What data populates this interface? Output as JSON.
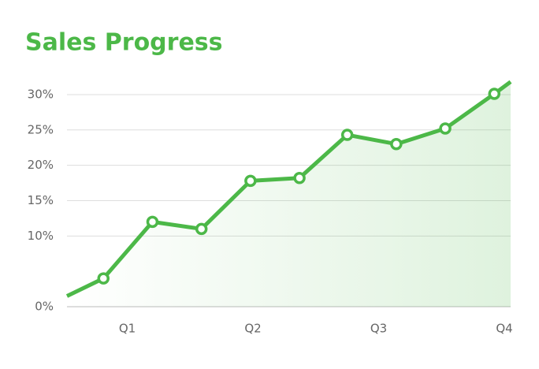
{
  "chart_data": {
    "type": "line",
    "title": "Sales Progress",
    "x": [
      0.52,
      0.81,
      1.2,
      1.59,
      1.98,
      2.37,
      2.75,
      3.14,
      3.53,
      3.92,
      4.05
    ],
    "values": [
      1.5,
      4,
      12,
      11,
      17.8,
      18.2,
      24.3,
      23,
      25.2,
      30.1,
      31.8
    ],
    "color": "#4cb848",
    "xlim": [
      0.52,
      4.05
    ],
    "xticks": [
      {
        "value": 1,
        "label": "Q1"
      },
      {
        "value": 2,
        "label": "Q2"
      },
      {
        "value": 3,
        "label": "Q3"
      },
      {
        "value": 4,
        "label": "Q4"
      }
    ],
    "ylim": [
      0,
      32
    ],
    "yticks": [
      {
        "value": 0,
        "label": "0%"
      },
      {
        "value": 10,
        "label": "10%"
      },
      {
        "value": 15,
        "label": "15%"
      },
      {
        "value": 20,
        "label": "20%"
      },
      {
        "value": 25,
        "label": "25%"
      },
      {
        "value": 30,
        "label": "30%"
      }
    ],
    "grid": true,
    "area": true
  }
}
